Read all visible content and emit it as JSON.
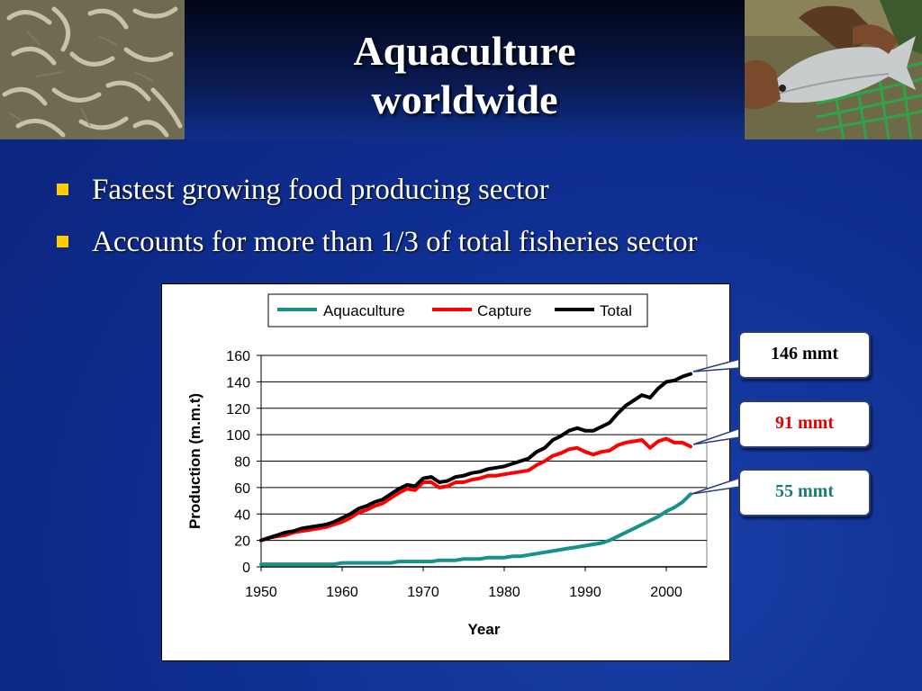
{
  "slide": {
    "title_line1": "Aquaculture",
    "title_line2": "worldwide",
    "bullets": [
      "Fastest growing food producing sector",
      "Accounts for more than 1/3 of  total fisheries sector"
    ]
  },
  "callouts": [
    {
      "label": "146 mmt",
      "color": "#000000",
      "series": "Total"
    },
    {
      "label": "91 mmt",
      "color": "#e00000",
      "series": "Capture"
    },
    {
      "label": "55 mmt",
      "color": "#1a7a78",
      "series": "Aquaculture"
    }
  ],
  "colors": {
    "accent_bullet": "#ffcc00",
    "background": "#0f2f92"
  },
  "chart_data": {
    "type": "line",
    "xlabel": "Year",
    "ylabel": "Production (m.m.t)",
    "xlim": [
      1950,
      2005
    ],
    "ylim": [
      0,
      160
    ],
    "xticks": [
      1950,
      1960,
      1970,
      1980,
      1990,
      2000
    ],
    "yticks": [
      0,
      20,
      40,
      60,
      80,
      100,
      120,
      140,
      160
    ],
    "grid": "horizontal",
    "legend": "top",
    "x": [
      1950,
      1951,
      1952,
      1953,
      1954,
      1955,
      1956,
      1957,
      1958,
      1959,
      1960,
      1961,
      1962,
      1963,
      1964,
      1965,
      1966,
      1967,
      1968,
      1969,
      1970,
      1971,
      1972,
      1973,
      1974,
      1975,
      1976,
      1977,
      1978,
      1979,
      1980,
      1981,
      1982,
      1983,
      1984,
      1985,
      1986,
      1987,
      1988,
      1989,
      1990,
      1991,
      1992,
      1993,
      1994,
      1995,
      1996,
      1997,
      1998,
      1999,
      2000,
      2001,
      2002,
      2003
    ],
    "series": [
      {
        "name": "Aquaculture",
        "color": "#16918b",
        "values": [
          2,
          2,
          2,
          2,
          2,
          2,
          2,
          2,
          2,
          2,
          3,
          3,
          3,
          3,
          3,
          3,
          3,
          4,
          4,
          4,
          4,
          4,
          5,
          5,
          5,
          6,
          6,
          6,
          7,
          7,
          7,
          8,
          8,
          9,
          10,
          11,
          12,
          13,
          14,
          15,
          16,
          17,
          18,
          20,
          23,
          26,
          29,
          32,
          35,
          38,
          42,
          45,
          49,
          55
        ]
      },
      {
        "name": "Capture",
        "color": "#ff0000",
        "values": [
          20,
          22,
          23,
          24,
          26,
          27,
          28,
          29,
          30,
          32,
          34,
          37,
          41,
          43,
          46,
          48,
          52,
          56,
          59,
          58,
          64,
          64,
          60,
          61,
          64,
          64,
          66,
          67,
          69,
          69,
          70,
          71,
          72,
          73,
          77,
          80,
          84,
          86,
          89,
          90,
          87,
          85,
          87,
          88,
          92,
          94,
          95,
          96,
          90,
          95,
          97,
          94,
          94,
          91
        ]
      },
      {
        "name": "Total",
        "color": "#000000",
        "values": [
          20,
          22,
          24,
          26,
          27,
          29,
          30,
          31,
          32,
          34,
          37,
          40,
          44,
          46,
          49,
          51,
          55,
          59,
          62,
          61,
          67,
          68,
          64,
          65,
          68,
          69,
          71,
          72,
          74,
          75,
          76,
          78,
          80,
          82,
          87,
          90,
          96,
          99,
          103,
          105,
          103,
          103,
          106,
          109,
          116,
          122,
          126,
          130,
          128,
          135,
          140,
          141,
          144,
          146
        ]
      }
    ]
  }
}
